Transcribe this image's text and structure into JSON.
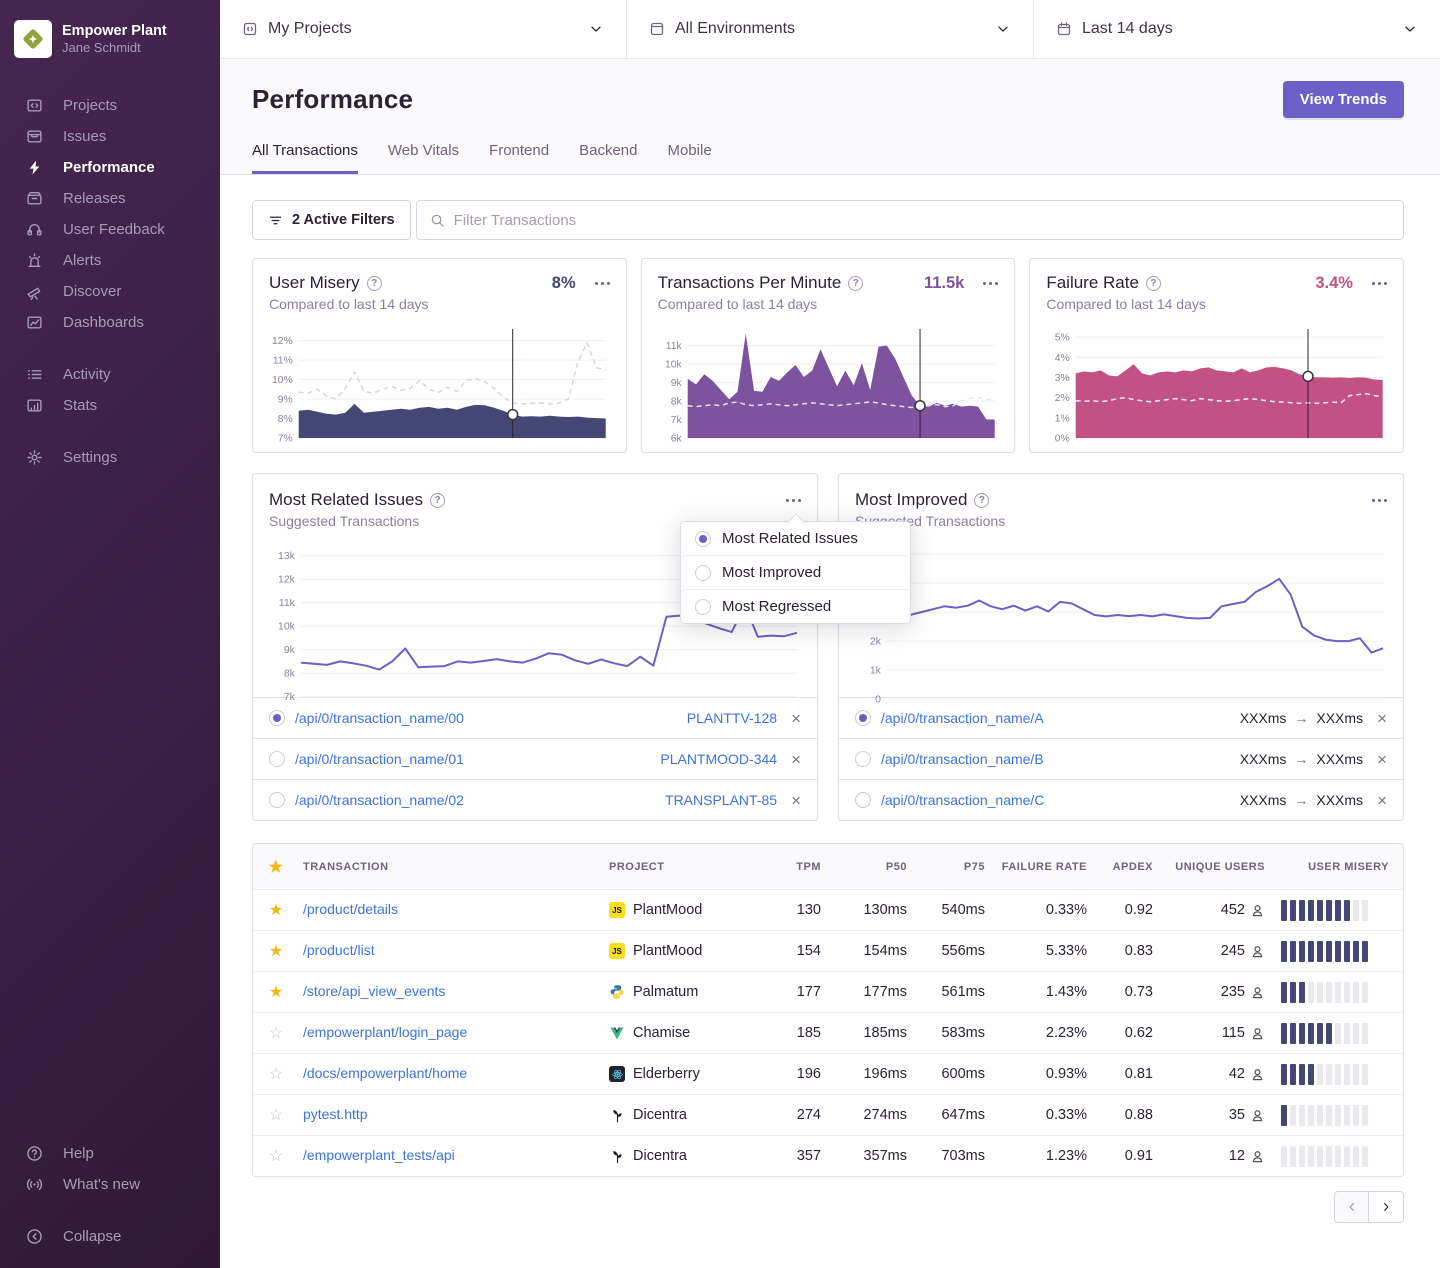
{
  "colors": {
    "accent_purple": "#6C5FC7",
    "link_blue": "#3D74DB",
    "misery_navy": "#444674",
    "tpm_purple": "#7D529E",
    "failure_rose": "#C25283",
    "star_gold": "#F2B712"
  },
  "sidebar": {
    "org_name": "Empower Plant",
    "user_name": "Jane Schmidt",
    "active_item": "Performance",
    "nav_primary": [
      {
        "label": "Projects",
        "icon": "projects"
      },
      {
        "label": "Issues",
        "icon": "issues"
      },
      {
        "label": "Performance",
        "icon": "performance"
      },
      {
        "label": "Releases",
        "icon": "releases"
      },
      {
        "label": "User Feedback",
        "icon": "user-feedback"
      },
      {
        "label": "Alerts",
        "icon": "alerts"
      },
      {
        "label": "Discover",
        "icon": "discover"
      },
      {
        "label": "Dashboards",
        "icon": "dashboards"
      }
    ],
    "nav_secondary": [
      {
        "label": "Activity",
        "icon": "activity"
      },
      {
        "label": "Stats",
        "icon": "stats"
      }
    ],
    "nav_tertiary": [
      {
        "label": "Settings",
        "icon": "settings"
      }
    ],
    "nav_footer": [
      {
        "label": "Help",
        "icon": "help"
      },
      {
        "label": "What's new",
        "icon": "whats-new"
      }
    ],
    "collapse_label": "Collapse"
  },
  "topbar": {
    "filters": [
      {
        "label": "My Projects",
        "icon": "project-filter"
      },
      {
        "label": "All Environments",
        "icon": "environment"
      },
      {
        "label": "Last 14 days",
        "icon": "calendar"
      }
    ]
  },
  "page": {
    "title": "Performance",
    "view_trends_label": "View Trends"
  },
  "tabs": {
    "items": [
      "All Transactions",
      "Web Vitals",
      "Frontend",
      "Backend",
      "Mobile"
    ],
    "active_index": 0
  },
  "filter_bar": {
    "active_filters_label": "2 Active Filters",
    "search_placeholder": "Filter Transactions"
  },
  "metric_cards": [
    {
      "title": "User Misery",
      "value": "8%",
      "value_color": "#444674",
      "subtitle": "Compared to last 14 days"
    },
    {
      "title": "Transactions Per Minute",
      "value": "11.5k",
      "value_color": "#7D529E",
      "subtitle": "Compared to last 14 days"
    },
    {
      "title": "Failure Rate",
      "value": "3.4%",
      "value_color": "#C25283",
      "subtitle": "Compared to last 14 days"
    }
  ],
  "widgets": [
    {
      "title": "Most Related Issues",
      "subtitle": "Suggested Transactions",
      "right_type": "issue",
      "rows": [
        {
          "transaction": "/api/0/transaction_name/00",
          "issue": "PLANTTV-128",
          "selected": true
        },
        {
          "transaction": "/api/0/transaction_name/01",
          "issue": "PLANTMOOD-344",
          "selected": false
        },
        {
          "transaction": "/api/0/transaction_name/02",
          "issue": "TRANSPLANT-85",
          "selected": false
        }
      ]
    },
    {
      "title": "Most Improved",
      "subtitle": "Suggested Transactions",
      "right_type": "duration",
      "rows": [
        {
          "transaction": "/api/0/transaction_name/A",
          "from": "XXXms",
          "to": "XXXms",
          "selected": true
        },
        {
          "transaction": "/api/0/transaction_name/B",
          "from": "XXXms",
          "to": "XXXms",
          "selected": false
        },
        {
          "transaction": "/api/0/transaction_name/C",
          "from": "XXXms",
          "to": "XXXms",
          "selected": false
        }
      ]
    }
  ],
  "context_menu": {
    "options": [
      "Most Related Issues",
      "Most Improved",
      "Most Regressed"
    ],
    "selected_index": 0
  },
  "table": {
    "columns": [
      "TRANSACTION",
      "PROJECT",
      "TPM",
      "P50",
      "P75",
      "FAILURE RATE",
      "APDEX",
      "UNIQUE USERS",
      "USER MISERY"
    ],
    "rows": [
      {
        "starred": true,
        "transaction": "/product/details",
        "platform": "javascript",
        "project": "PlantMood",
        "tpm": "130",
        "p50": "130ms",
        "p75": "540ms",
        "failure_rate": "0.33%",
        "apdex": "0.92",
        "unique_users": "452",
        "misery": 8
      },
      {
        "starred": true,
        "transaction": "/product/list",
        "platform": "javascript",
        "project": "PlantMood",
        "tpm": "154",
        "p50": "154ms",
        "p75": "556ms",
        "failure_rate": "5.33%",
        "apdex": "0.83",
        "unique_users": "245",
        "misery": 10
      },
      {
        "starred": true,
        "transaction": "/store/api_view_events",
        "platform": "python",
        "project": "Palmatum",
        "tpm": "177",
        "p50": "177ms",
        "p75": "561ms",
        "failure_rate": "1.43%",
        "apdex": "0.73",
        "unique_users": "235",
        "misery": 3
      },
      {
        "starred": false,
        "transaction": "/empowerplant/login_page",
        "platform": "vue",
        "project": "Chamise",
        "tpm": "185",
        "p50": "185ms",
        "p75": "583ms",
        "failure_rate": "2.23%",
        "apdex": "0.62",
        "unique_users": "115",
        "misery": 6
      },
      {
        "starred": false,
        "transaction": "/docs/empowerplant/home",
        "platform": "react",
        "project": "Elderberry",
        "tpm": "196",
        "p50": "196ms",
        "p75": "600ms",
        "failure_rate": "0.93%",
        "apdex": "0.81",
        "unique_users": "42",
        "misery": 4
      },
      {
        "starred": false,
        "transaction": "pytest.http",
        "platform": "plant",
        "project": "Dicentra",
        "tpm": "274",
        "p50": "274ms",
        "p75": "647ms",
        "failure_rate": "0.33%",
        "apdex": "0.88",
        "unique_users": "35",
        "misery": 1
      },
      {
        "starred": false,
        "transaction": "/empowerplant_tests/api",
        "platform": "plant",
        "project": "Dicentra",
        "tpm": "357",
        "p50": "357ms",
        "p75": "703ms",
        "failure_rate": "1.23%",
        "apdex": "0.91",
        "unique_users": "12",
        "misery": 0
      }
    ]
  },
  "pagination": {
    "prev_enabled": false,
    "next_enabled": true
  },
  "chart_data": [
    {
      "id": "user_misery",
      "type": "area",
      "title": "User Misery",
      "unit": "%",
      "ylim": [
        7,
        12.6
      ],
      "ticks": [
        {
          "v": 12,
          "l": "12%"
        },
        {
          "v": 11,
          "l": "11%"
        },
        {
          "v": 10,
          "l": "10%"
        },
        {
          "v": 9,
          "l": "9%"
        },
        {
          "v": 8,
          "l": "8%"
        },
        {
          "v": 7,
          "l": "7%"
        }
      ],
      "series": [
        {
          "name": "current",
          "values": [
            8.4,
            8.45,
            8.35,
            8.25,
            8.2,
            8.3,
            8.75,
            8.3,
            8.35,
            8.4,
            8.45,
            8.5,
            8.45,
            8.55,
            8.6,
            8.5,
            8.55,
            8.45,
            8.6,
            8.7,
            8.68,
            8.55,
            8.4,
            8.2,
            8.1,
            8.12,
            8.1,
            8.14,
            8.1,
            8.08,
            8.1,
            8.05,
            8.02,
            8.0
          ]
        },
        {
          "name": "previous period",
          "style": "dashed",
          "values": [
            9.35,
            9.3,
            9.5,
            9.15,
            9.0,
            9.55,
            10.4,
            9.4,
            9.3,
            9.5,
            9.65,
            9.45,
            9.55,
            9.95,
            9.5,
            9.35,
            9.6,
            9.4,
            9.95,
            10.05,
            9.9,
            9.55,
            9.1,
            8.8,
            8.75,
            8.78,
            8.8,
            8.75,
            8.8,
            9.0,
            10.9,
            11.9,
            10.6,
            10.5
          ]
        }
      ],
      "marker_index": 23,
      "colors": {
        "area": "#444674",
        "previous": "#D8D2DF"
      }
    },
    {
      "id": "tpm",
      "type": "area",
      "title": "Transactions Per Minute",
      "unit": "k",
      "ylim": [
        6,
        11.9
      ],
      "ticks": [
        {
          "v": 11,
          "l": "11k"
        },
        {
          "v": 10,
          "l": "10k"
        },
        {
          "v": 9,
          "l": "9k"
        },
        {
          "v": 8,
          "l": "8k"
        },
        {
          "v": 7,
          "l": "7k"
        },
        {
          "v": 6,
          "l": "6k"
        }
      ],
      "series": [
        {
          "name": "current",
          "values": [
            9.2,
            8.9,
            9.45,
            9.1,
            8.6,
            8.1,
            8.5,
            11.65,
            8.55,
            8.5,
            9.3,
            9.1,
            9.55,
            9.95,
            9.3,
            9.65,
            10.8,
            9.8,
            8.8,
            9.65,
            8.85,
            10.05,
            8.6,
            10.95,
            11.0,
            10.3,
            9.3,
            8.3,
            7.75,
            7.7,
            7.9,
            7.75,
            7.85,
            7.7,
            7.75,
            7.7,
            7.0,
            7.0
          ]
        },
        {
          "name": "previous period",
          "style": "dashed",
          "values": [
            7.75,
            7.7,
            7.75,
            7.8,
            7.75,
            7.9,
            7.95,
            7.8,
            7.75,
            7.8,
            7.85,
            7.8,
            7.75,
            7.8,
            7.85,
            7.9,
            7.85,
            7.8,
            7.75,
            7.8,
            7.85,
            7.9,
            7.95,
            7.9,
            7.8,
            7.75,
            7.7,
            7.65,
            7.7,
            7.75,
            7.8,
            7.7,
            7.75,
            8.0,
            8.15,
            8.2,
            8.1,
            8.05
          ]
        }
      ],
      "marker_index": 28,
      "colors": {
        "area": "#7D529E",
        "previous": "#E7E1EE"
      }
    },
    {
      "id": "failure_rate",
      "type": "area",
      "title": "Failure Rate",
      "unit": "%",
      "ylim": [
        0,
        5.4
      ],
      "ticks": [
        {
          "v": 5,
          "l": "5%"
        },
        {
          "v": 4,
          "l": "4%"
        },
        {
          "v": 3,
          "l": "3%"
        },
        {
          "v": 2,
          "l": "2%"
        },
        {
          "v": 1,
          "l": "1%"
        },
        {
          "v": 0,
          "l": "0%"
        }
      ],
      "series": [
        {
          "name": "current",
          "values": [
            3.2,
            3.3,
            3.25,
            3.35,
            3.1,
            3.05,
            3.35,
            3.65,
            3.2,
            3.1,
            3.25,
            3.3,
            3.25,
            3.35,
            3.3,
            3.45,
            3.5,
            3.35,
            3.3,
            3.25,
            3.45,
            3.25,
            3.35,
            3.5,
            3.52,
            3.45,
            3.35,
            3.15,
            3.05,
            3.0,
            3.0,
            2.98,
            3.0,
            2.97,
            3.0,
            2.98,
            2.9,
            2.88
          ]
        },
        {
          "name": "previous period",
          "style": "dashed",
          "values": [
            1.85,
            1.82,
            1.85,
            1.8,
            1.85,
            1.95,
            2.0,
            1.9,
            1.85,
            1.8,
            1.85,
            1.9,
            1.95,
            1.9,
            1.85,
            1.95,
            1.9,
            1.85,
            1.82,
            1.85,
            1.9,
            1.95,
            1.9,
            1.85,
            1.8,
            1.78,
            1.75,
            1.72,
            1.75,
            1.72,
            1.75,
            1.78,
            1.75,
            2.1,
            2.15,
            2.2,
            2.1,
            2.05
          ]
        }
      ],
      "marker_index": 28,
      "colors": {
        "area": "#C25283",
        "previous": "#F2EDF4"
      }
    },
    {
      "id": "most_related_issues",
      "type": "line",
      "title": "Most Related Issues",
      "unit": "k",
      "ylim": [
        6.9,
        13.5
      ],
      "ticks": [
        {
          "v": 13,
          "l": "13k"
        },
        {
          "v": 12,
          "l": "12k"
        },
        {
          "v": 11,
          "l": "11k"
        },
        {
          "v": 10,
          "l": "10k"
        },
        {
          "v": 9,
          "l": "9k"
        },
        {
          "v": 8,
          "l": "8k"
        },
        {
          "v": 7,
          "l": "7k"
        }
      ],
      "series": [
        {
          "name": "transactions",
          "values": [
            8.45,
            8.4,
            8.35,
            8.5,
            8.42,
            8.32,
            8.15,
            8.5,
            9.05,
            8.25,
            8.28,
            8.3,
            8.5,
            8.45,
            8.52,
            8.6,
            8.5,
            8.45,
            8.62,
            8.85,
            8.78,
            8.55,
            8.4,
            8.58,
            8.42,
            8.3,
            8.7,
            8.32,
            10.4,
            10.45,
            10.3,
            10.12,
            9.92,
            9.75,
            10.9,
            9.55,
            9.6,
            9.57,
            9.72
          ]
        }
      ],
      "marker_index": null,
      "colors": {
        "line": "#6C5FC7"
      }
    },
    {
      "id": "most_improved",
      "type": "line",
      "title": "Most Improved",
      "unit": "k",
      "ylim": [
        0,
        5.35
      ],
      "ticks": [
        {
          "v": 5,
          "l": ""
        },
        {
          "v": 4,
          "l": ""
        },
        {
          "v": 3,
          "l": ""
        },
        {
          "v": 2,
          "l": "2k"
        },
        {
          "v": 1,
          "l": "1k"
        },
        {
          "v": 0,
          "l": "0"
        }
      ],
      "series": [
        {
          "name": "transactions",
          "values": [
            3.1,
            3.5,
            2.9,
            3.0,
            3.1,
            3.2,
            3.15,
            3.22,
            3.4,
            3.2,
            3.1,
            3.22,
            3.05,
            3.2,
            3.02,
            3.35,
            3.3,
            3.1,
            2.9,
            2.85,
            2.9,
            2.86,
            2.9,
            2.85,
            2.92,
            2.86,
            2.8,
            2.78,
            2.8,
            3.2,
            3.28,
            3.35,
            3.7,
            3.9,
            4.15,
            3.6,
            2.5,
            2.2,
            2.05,
            2.0,
            2.0,
            2.1,
            1.6,
            1.75
          ]
        }
      ],
      "marker_index": null,
      "colors": {
        "line": "#6C5FC7"
      }
    }
  ]
}
